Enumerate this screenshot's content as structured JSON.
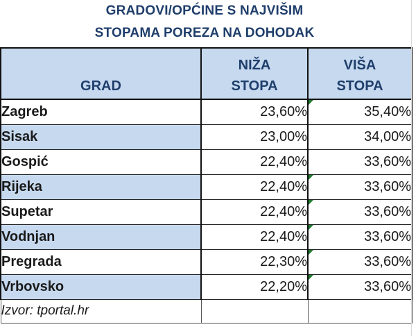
{
  "title": {
    "line1": "GRADOVI/OPĆINE S NAJVIŠIM",
    "line2": "STOPAMA POREZA NA DOHODAK"
  },
  "table": {
    "headers": {
      "city": "GRAD",
      "lower_line1": "NIŽA",
      "lower_line2": "STOPA",
      "higher_line1": "VIŠA",
      "higher_line2": "STOPA"
    },
    "rows": [
      {
        "city": "Zagreb",
        "lower": "23,60%",
        "higher": "35,40%",
        "shaded": false,
        "marker": true
      },
      {
        "city": "Sisak",
        "lower": "23,00%",
        "higher": "34,00%",
        "shaded": true,
        "marker": false
      },
      {
        "city": "Gospić",
        "lower": "22,40%",
        "higher": "33,60%",
        "shaded": false,
        "marker": false
      },
      {
        "city": "Rijeka",
        "lower": "22,40%",
        "higher": "33,60%",
        "shaded": true,
        "marker": true
      },
      {
        "city": "Supetar",
        "lower": "22,40%",
        "higher": "33,60%",
        "shaded": false,
        "marker": true
      },
      {
        "city": "Vodnjan",
        "lower": "22,40%",
        "higher": "33,60%",
        "shaded": true,
        "marker": true
      },
      {
        "city": "Pregrada",
        "lower": "22,30%",
        "higher": "33,60%",
        "shaded": false,
        "marker": true
      },
      {
        "city": "Vrbovsko",
        "lower": "22,20%",
        "higher": "33,60%",
        "shaded": true,
        "marker": true
      }
    ],
    "source": "Izvor: tportal.hr"
  },
  "colors": {
    "header_bg": "#c6d9ef",
    "header_text": "#1f3e6b",
    "marker": "#1e7a2e"
  }
}
